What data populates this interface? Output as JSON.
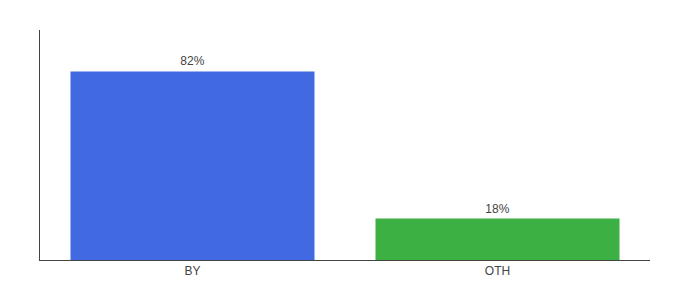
{
  "chart_data": {
    "type": "bar",
    "categories": [
      "BY",
      "OTH"
    ],
    "values": [
      82,
      18
    ],
    "value_labels": [
      "82%",
      "18%"
    ],
    "colors": [
      "#4169e1",
      "#3cb043"
    ],
    "ylim": [
      0,
      100
    ],
    "data_labels": true,
    "tick_labels": "x",
    "grid": false
  }
}
